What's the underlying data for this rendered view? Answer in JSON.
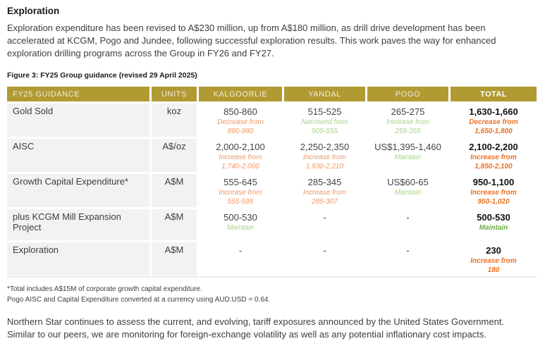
{
  "page": {
    "heading": "Exploration",
    "intro": "Exploration expenditure has been revised to A$230 million, up from A$180 million, as drill drive development has been accelerated at KCGM, Pogo and Jundee, following successful exploration results. This work paves the way for enhanced exploration drilling programs across the Group in FY26 and FY27.",
    "figure_caption": "Figure 3: FY25 Group guidance (revised 29 April 2025)",
    "footnote1": "*Total includes A$15M of corporate growth capital expenditure.",
    "footnote2": "Pogo AISC and Capital Expenditure converted at a currency using AUD:USD = 0.64.",
    "closing": "Northern Star continues to assess the current, and evolving, tariff exposures announced by the United States Government. Similar to our peers, we are monitoring for foreign-exchange volatility as well as any potential inflationary cost impacts."
  },
  "colors": {
    "header_gold": "#b29a33",
    "cell_gray": "#f2f2f2",
    "change_orange_light": "#ee9765",
    "change_orange_bold": "#ed7021",
    "change_green_light": "#a6d289",
    "change_green_bold": "#6fad46"
  },
  "table": {
    "headers": [
      "FY25 GUIDANCE",
      "UNITS",
      "KALGOORLIE",
      "YANDAL",
      "POGO",
      "TOTAL"
    ],
    "rows": [
      {
        "label": "Gold Sold",
        "unit": "koz",
        "cells": [
          {
            "value": "850-860",
            "change": "Decrease from\n890-980"
          },
          {
            "value": "515-525",
            "change": "Narrowed from\n505-555"
          },
          {
            "value": "265-275",
            "change": "Increase from\n255-265"
          },
          {
            "value": "1,630-1,660",
            "change": "Decrease from\n1,650-1,800"
          }
        ]
      },
      {
        "label": "AISC",
        "unit": "A$/oz",
        "cells": [
          {
            "value": "2,000-2,100",
            "change": "Increase from\n1,740-2,000"
          },
          {
            "value": "2,250-2,350",
            "change": "Increase from\n1,930-2,210"
          },
          {
            "value": "US$1,395-1,460",
            "change": "Maintain"
          },
          {
            "value": "2,100-2,200",
            "change": "Increase from\n1,850-2,100"
          }
        ]
      },
      {
        "label": "Growth Capital Expenditure*",
        "unit": "A$M",
        "cells": [
          {
            "value": "555-645",
            "change": "Increase from\n555-595"
          },
          {
            "value": "285-345",
            "change": "Increase from\n285-307"
          },
          {
            "value": "US$60-65",
            "change": "Maintain"
          },
          {
            "value": "950-1,100",
            "change": "Increase from\n950-1,020"
          }
        ]
      },
      {
        "label": "plus KCGM Mill Expansion Project",
        "unit": "A$M",
        "cells": [
          {
            "value": "500-530",
            "change": "Maintain"
          },
          {
            "value": "-"
          },
          {
            "value": "-"
          },
          {
            "value": "500-530",
            "change": "Maintain"
          }
        ]
      },
      {
        "label": "Exploration",
        "unit": "A$M",
        "cells": [
          {
            "value": "-"
          },
          {
            "value": "-"
          },
          {
            "value": "-"
          },
          {
            "value": "230",
            "change": "Increase from\n180"
          }
        ]
      }
    ]
  }
}
